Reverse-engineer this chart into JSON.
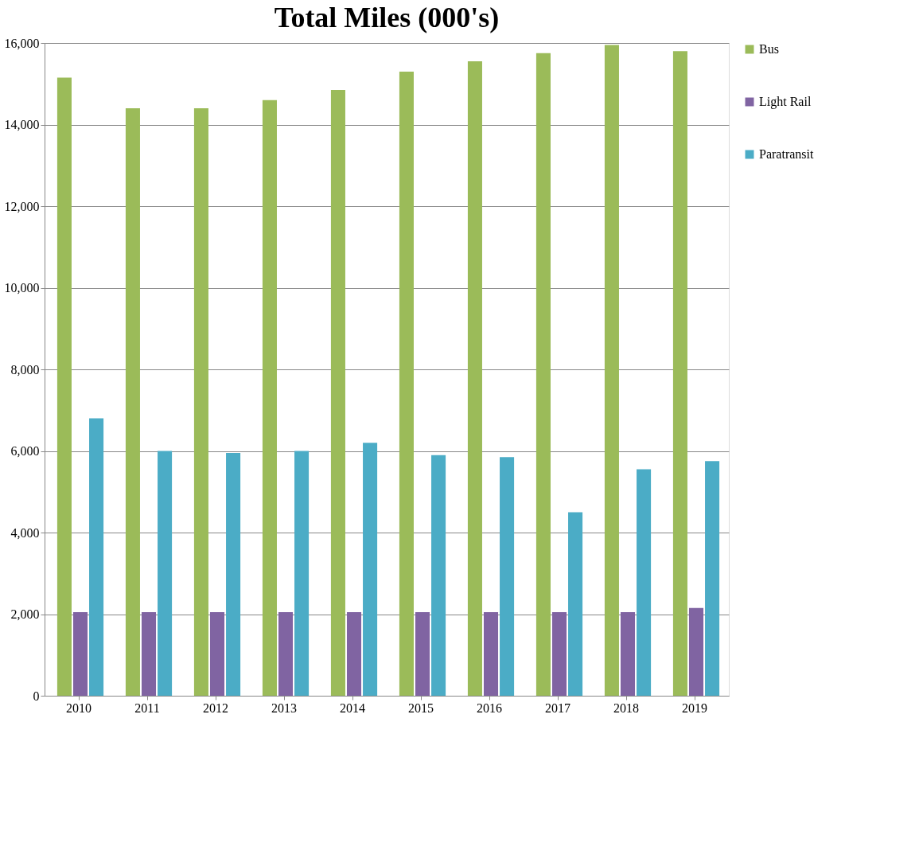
{
  "chart_data": {
    "type": "bar",
    "title": "Total Miles (000's)",
    "categories": [
      "2010",
      "2011",
      "2012",
      "2013",
      "2014",
      "2015",
      "2016",
      "2017",
      "2018",
      "2019"
    ],
    "series": [
      {
        "name": "Bus",
        "color": "#9bbb59",
        "values": [
          15150,
          14400,
          14400,
          14600,
          14850,
          15300,
          15550,
          15750,
          15950,
          15800
        ]
      },
      {
        "name": "Light Rail",
        "color": "#8064a2",
        "values": [
          2050,
          2050,
          2050,
          2050,
          2050,
          2050,
          2050,
          2050,
          2050,
          2150
        ]
      },
      {
        "name": "Paratransit",
        "color": "#4bacc6",
        "values": [
          6800,
          6000,
          5950,
          6000,
          6200,
          5900,
          5850,
          4500,
          5550,
          5750
        ]
      }
    ],
    "ylim": [
      0,
      16000
    ],
    "yticks": [
      {
        "value": 0,
        "label": "0"
      },
      {
        "value": 2000,
        "label": "2,000"
      },
      {
        "value": 4000,
        "label": "4,000"
      },
      {
        "value": 6000,
        "label": "6,000"
      },
      {
        "value": 8000,
        "label": "8,000"
      },
      {
        "value": 10000,
        "label": "10,000"
      },
      {
        "value": 12000,
        "label": "12,000"
      },
      {
        "value": 14000,
        "label": "14,000"
      },
      {
        "value": 16000,
        "label": "16,000"
      }
    ],
    "grid": "y",
    "legend": "top right"
  }
}
